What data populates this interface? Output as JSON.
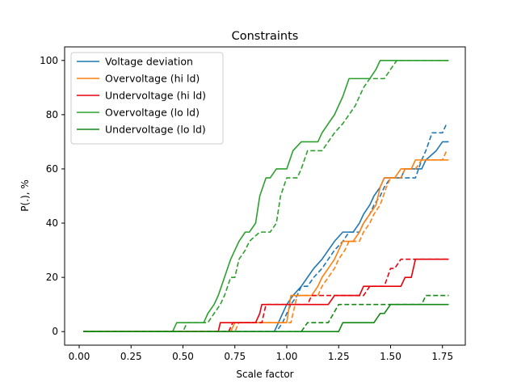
{
  "chart_data": {
    "type": "line",
    "title": "Constraints",
    "xlabel": "Scale factor",
    "ylabel": "P(.), %",
    "xlim": [
      -0.07,
      1.86
    ],
    "ylim": [
      -5,
      105
    ],
    "xticks": [
      0.0,
      0.25,
      0.5,
      0.75,
      1.0,
      1.25,
      1.5,
      1.75
    ],
    "xtick_labels": [
      "0.00",
      "0.25",
      "0.50",
      "0.75",
      "1.00",
      "1.25",
      "1.50",
      "1.75"
    ],
    "yticks": [
      0,
      20,
      40,
      60,
      80,
      100
    ],
    "ytick_labels": [
      "0",
      "20",
      "40",
      "60",
      "80",
      "100"
    ],
    "grid": false,
    "legend_position": "upper-left",
    "series": [
      {
        "name": "Voltage deviation",
        "color": "#1f77b4",
        "style": "solid",
        "show_in_legend": true,
        "points": [
          [
            0.02,
            0
          ],
          [
            0.94,
            0
          ],
          [
            0.96,
            3.3
          ],
          [
            0.98,
            6.7
          ],
          [
            1.0,
            10
          ],
          [
            1.03,
            13.3
          ],
          [
            1.07,
            16.7
          ],
          [
            1.1,
            20
          ],
          [
            1.13,
            23.3
          ],
          [
            1.17,
            26.7
          ],
          [
            1.2,
            30
          ],
          [
            1.23,
            33.3
          ],
          [
            1.27,
            36.7
          ],
          [
            1.32,
            36.7
          ],
          [
            1.35,
            40
          ],
          [
            1.37,
            43.3
          ],
          [
            1.4,
            46.7
          ],
          [
            1.42,
            50
          ],
          [
            1.45,
            53.3
          ],
          [
            1.47,
            56.7
          ],
          [
            1.55,
            56.7
          ],
          [
            1.57,
            60
          ],
          [
            1.65,
            60
          ],
          [
            1.67,
            63.3
          ],
          [
            1.72,
            66.7
          ],
          [
            1.75,
            70
          ],
          [
            1.78,
            70
          ]
        ]
      },
      {
        "name": "",
        "color": "#1f77b4",
        "style": "dashed",
        "show_in_legend": false,
        "points": [
          [
            0.02,
            0
          ],
          [
            0.95,
            0
          ],
          [
            0.98,
            3.3
          ],
          [
            1.0,
            6.7
          ],
          [
            1.02,
            10
          ],
          [
            1.05,
            13.3
          ],
          [
            1.07,
            16.7
          ],
          [
            1.1,
            16.7
          ],
          [
            1.13,
            20
          ],
          [
            1.17,
            23.3
          ],
          [
            1.2,
            26.7
          ],
          [
            1.23,
            30
          ],
          [
            1.27,
            33.3
          ],
          [
            1.3,
            36.7
          ],
          [
            1.35,
            36.7
          ],
          [
            1.37,
            40
          ],
          [
            1.4,
            43.3
          ],
          [
            1.42,
            46.7
          ],
          [
            1.45,
            50
          ],
          [
            1.47,
            53.3
          ],
          [
            1.5,
            56.7
          ],
          [
            1.62,
            56.7
          ],
          [
            1.65,
            63.3
          ],
          [
            1.67,
            66.7
          ],
          [
            1.7,
            73.3
          ],
          [
            1.75,
            73.3
          ],
          [
            1.77,
            76.7
          ]
        ]
      },
      {
        "name": "Overvoltage (hi ld)",
        "color": "#ff7f0e",
        "style": "solid",
        "show_in_legend": true,
        "points": [
          [
            0.02,
            0
          ],
          [
            0.73,
            0
          ],
          [
            0.75,
            3.3
          ],
          [
            1.0,
            3.3
          ],
          [
            1.02,
            13.3
          ],
          [
            1.12,
            13.3
          ],
          [
            1.15,
            16.7
          ],
          [
            1.17,
            20
          ],
          [
            1.2,
            23.3
          ],
          [
            1.23,
            26.7
          ],
          [
            1.25,
            30
          ],
          [
            1.27,
            33.3
          ],
          [
            1.32,
            33.3
          ],
          [
            1.35,
            36.7
          ],
          [
            1.37,
            40
          ],
          [
            1.4,
            43.3
          ],
          [
            1.43,
            46.7
          ],
          [
            1.45,
            53.3
          ],
          [
            1.47,
            56.7
          ],
          [
            1.52,
            56.7
          ],
          [
            1.55,
            60
          ],
          [
            1.6,
            60
          ],
          [
            1.62,
            63.3
          ],
          [
            1.78,
            63.3
          ]
        ]
      },
      {
        "name": "",
        "color": "#ff7f0e",
        "style": "dashed",
        "show_in_legend": false,
        "points": [
          [
            0.02,
            0
          ],
          [
            0.75,
            0
          ],
          [
            0.77,
            3.3
          ],
          [
            1.02,
            3.3
          ],
          [
            1.05,
            13.3
          ],
          [
            1.15,
            13.3
          ],
          [
            1.17,
            16.7
          ],
          [
            1.2,
            20
          ],
          [
            1.23,
            23.3
          ],
          [
            1.25,
            26.7
          ],
          [
            1.28,
            30
          ],
          [
            1.3,
            33.3
          ],
          [
            1.35,
            33.3
          ],
          [
            1.37,
            36.7
          ],
          [
            1.4,
            40
          ],
          [
            1.42,
            43.3
          ],
          [
            1.45,
            46.7
          ],
          [
            1.48,
            53.3
          ],
          [
            1.5,
            56.7
          ],
          [
            1.55,
            56.7
          ],
          [
            1.57,
            60
          ],
          [
            1.62,
            60
          ],
          [
            1.65,
            63.3
          ],
          [
            1.75,
            63.3
          ],
          [
            1.77,
            66.7
          ]
        ]
      },
      {
        "name": "Undervoltage (hi ld)",
        "color": "#e8000b",
        "style": "solid",
        "show_in_legend": true,
        "points": [
          [
            0.02,
            0
          ],
          [
            0.67,
            0
          ],
          [
            0.68,
            3.3
          ],
          [
            0.85,
            3.3
          ],
          [
            0.87,
            6.7
          ],
          [
            0.88,
            10
          ],
          [
            1.05,
            10
          ],
          [
            1.07,
            10
          ],
          [
            1.2,
            10
          ],
          [
            1.23,
            13.3
          ],
          [
            1.35,
            13.3
          ],
          [
            1.37,
            16.7
          ],
          [
            1.55,
            16.7
          ],
          [
            1.57,
            20
          ],
          [
            1.6,
            20
          ],
          [
            1.62,
            26.7
          ],
          [
            1.78,
            26.7
          ]
        ]
      },
      {
        "name": "",
        "color": "#e8000b",
        "style": "dashed",
        "show_in_legend": false,
        "points": [
          [
            0.02,
            0
          ],
          [
            0.72,
            0
          ],
          [
            0.74,
            3.3
          ],
          [
            0.88,
            3.3
          ],
          [
            0.9,
            10
          ],
          [
            1.1,
            10
          ],
          [
            1.12,
            13.3
          ],
          [
            1.37,
            13.3
          ],
          [
            1.4,
            16.7
          ],
          [
            1.47,
            16.7
          ],
          [
            1.5,
            23.3
          ],
          [
            1.52,
            23.3
          ],
          [
            1.55,
            26.7
          ],
          [
            1.78,
            26.7
          ]
        ]
      },
      {
        "name": "Overvoltage (lo ld)",
        "color": "#2ca02c",
        "style": "solid",
        "show_in_legend": true,
        "points": [
          [
            0.02,
            0
          ],
          [
            0.45,
            0
          ],
          [
            0.47,
            3.3
          ],
          [
            0.6,
            3.3
          ],
          [
            0.62,
            6.7
          ],
          [
            0.65,
            10
          ],
          [
            0.67,
            13.3
          ],
          [
            0.7,
            20
          ],
          [
            0.73,
            26.7
          ],
          [
            0.75,
            30
          ],
          [
            0.77,
            33.3
          ],
          [
            0.8,
            36.7
          ],
          [
            0.82,
            36.7
          ],
          [
            0.85,
            40
          ],
          [
            0.87,
            50
          ],
          [
            0.9,
            56.7
          ],
          [
            0.92,
            56.7
          ],
          [
            0.95,
            60
          ],
          [
            1.0,
            60
          ],
          [
            1.03,
            66.7
          ],
          [
            1.07,
            70
          ],
          [
            1.1,
            70
          ],
          [
            1.15,
            70
          ],
          [
            1.17,
            73.3
          ],
          [
            1.2,
            76.7
          ],
          [
            1.23,
            80
          ],
          [
            1.27,
            86.7
          ],
          [
            1.3,
            93.3
          ],
          [
            1.35,
            93.3
          ],
          [
            1.4,
            93.3
          ],
          [
            1.43,
            96.7
          ],
          [
            1.45,
            100
          ],
          [
            1.78,
            100
          ]
        ]
      },
      {
        "name": "",
        "color": "#2ca02c",
        "style": "dashed",
        "show_in_legend": false,
        "points": [
          [
            0.02,
            0
          ],
          [
            0.5,
            0
          ],
          [
            0.52,
            3.3
          ],
          [
            0.62,
            3.3
          ],
          [
            0.65,
            6.7
          ],
          [
            0.68,
            10
          ],
          [
            0.7,
            13.3
          ],
          [
            0.73,
            20
          ],
          [
            0.75,
            20
          ],
          [
            0.77,
            26.7
          ],
          [
            0.8,
            30
          ],
          [
            0.82,
            33.3
          ],
          [
            0.87,
            36.7
          ],
          [
            0.92,
            36.7
          ],
          [
            0.95,
            40
          ],
          [
            0.97,
            50
          ],
          [
            1.0,
            56.7
          ],
          [
            1.05,
            56.7
          ],
          [
            1.07,
            60
          ],
          [
            1.1,
            66.7
          ],
          [
            1.17,
            66.7
          ],
          [
            1.2,
            70
          ],
          [
            1.23,
            73.3
          ],
          [
            1.27,
            76.7
          ],
          [
            1.3,
            80
          ],
          [
            1.33,
            83.3
          ],
          [
            1.35,
            86.7
          ],
          [
            1.37,
            90
          ],
          [
            1.4,
            93.3
          ],
          [
            1.47,
            93.3
          ],
          [
            1.5,
            96.7
          ],
          [
            1.53,
            100
          ],
          [
            1.78,
            100
          ]
        ]
      },
      {
        "name": "Undervoltage (lo ld)",
        "color": "#138913",
        "style": "solid",
        "show_in_legend": true,
        "points": [
          [
            0.02,
            0
          ],
          [
            1.25,
            0
          ],
          [
            1.27,
            3.3
          ],
          [
            1.42,
            3.3
          ],
          [
            1.45,
            6.7
          ],
          [
            1.47,
            6.7
          ],
          [
            1.5,
            10
          ],
          [
            1.78,
            10
          ]
        ]
      },
      {
        "name": "",
        "color": "#138913",
        "style": "dashed",
        "show_in_legend": false,
        "points": [
          [
            0.02,
            0
          ],
          [
            1.07,
            0
          ],
          [
            1.1,
            3.3
          ],
          [
            1.2,
            3.3
          ],
          [
            1.25,
            10
          ],
          [
            1.65,
            10
          ],
          [
            1.67,
            13.3
          ],
          [
            1.78,
            13.3
          ]
        ]
      }
    ]
  }
}
